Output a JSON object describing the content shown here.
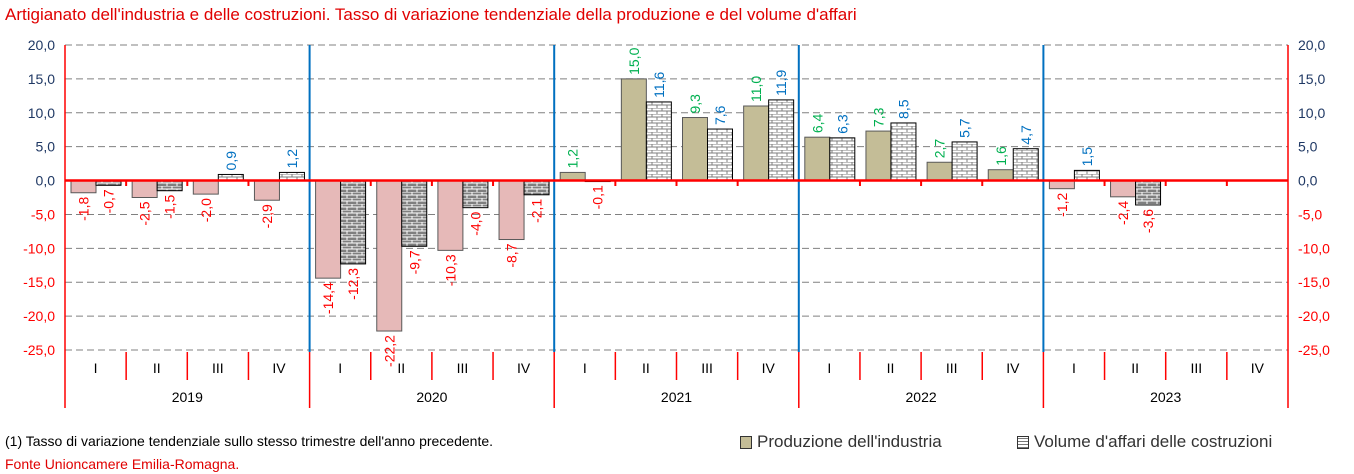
{
  "chart_data": {
    "type": "bar",
    "title": "Artigianato dell'industria e delle costruzioni. Tasso di variazione tendenziale della produzione e del volume d'affari",
    "years": [
      "2019",
      "2020",
      "2021",
      "2022",
      "2023"
    ],
    "quarters": [
      "I",
      "II",
      "III",
      "IV"
    ],
    "ylim": [
      -25,
      20
    ],
    "yticks": [
      "20,0",
      "15,0",
      "10,0",
      "5,0",
      "0,0",
      "-5,0",
      "-10,0",
      "-15,0",
      "-20,0",
      "-25,0"
    ],
    "series": [
      {
        "name": "Produzione dell'industria",
        "values": [
          -1.8,
          -2.5,
          -2.0,
          -2.9,
          -14.4,
          -22.2,
          -10.3,
          -8.7,
          1.2,
          15.0,
          9.3,
          11.0,
          6.4,
          7.3,
          2.7,
          1.6,
          -1.2,
          -2.4,
          null,
          null
        ],
        "labels": [
          "-1,8",
          "-2,5",
          "-2,0",
          "-2,9",
          "-14,4",
          "-22,2",
          "-10,3",
          "-8,7",
          "1,2",
          "15,0",
          "9,3",
          "11,0",
          "6,4",
          "7,3",
          "2,7",
          "1,6",
          "-1,2",
          "-2,4",
          "",
          ""
        ]
      },
      {
        "name": "Volume d'affari delle costruzioni",
        "values": [
          -0.7,
          -1.5,
          0.9,
          1.2,
          -12.3,
          -9.7,
          -4.0,
          -2.1,
          -0.1,
          11.6,
          7.6,
          11.9,
          6.3,
          8.5,
          5.7,
          4.7,
          1.5,
          -3.6,
          null,
          null
        ],
        "labels": [
          "-0,7",
          "-1,5",
          "0,9",
          "1,2",
          "-12,3",
          "-9,7",
          "-4,0",
          "-2,1",
          "-0,1",
          "11,6",
          "7,6",
          "11,9",
          "6,3",
          "8,5",
          "5,7",
          "4,7",
          "1,5",
          "-3,6",
          "",
          ""
        ]
      }
    ],
    "colors": {
      "prod_pos": "#c4bd97",
      "prod_neg": "#e6b9b8",
      "prod_label_pos": "#00b050",
      "vol_label_pos": "#0070c0",
      "neg_label": "#ff0000",
      "axis_pos": "#1f3864",
      "axis_neg": "#ff0000",
      "year_line": "#0070c0",
      "zero_line": "#ff0000"
    }
  },
  "footer": {
    "note": "(1) Tasso di variazione tendenziale sullo stesso trimestre dell'anno precedente.",
    "source": "Fonte Unioncamere Emilia-Romagna."
  },
  "legend": {
    "prod": "Produzione dell'industria",
    "vol": "Volume d'affari delle costruzioni"
  }
}
